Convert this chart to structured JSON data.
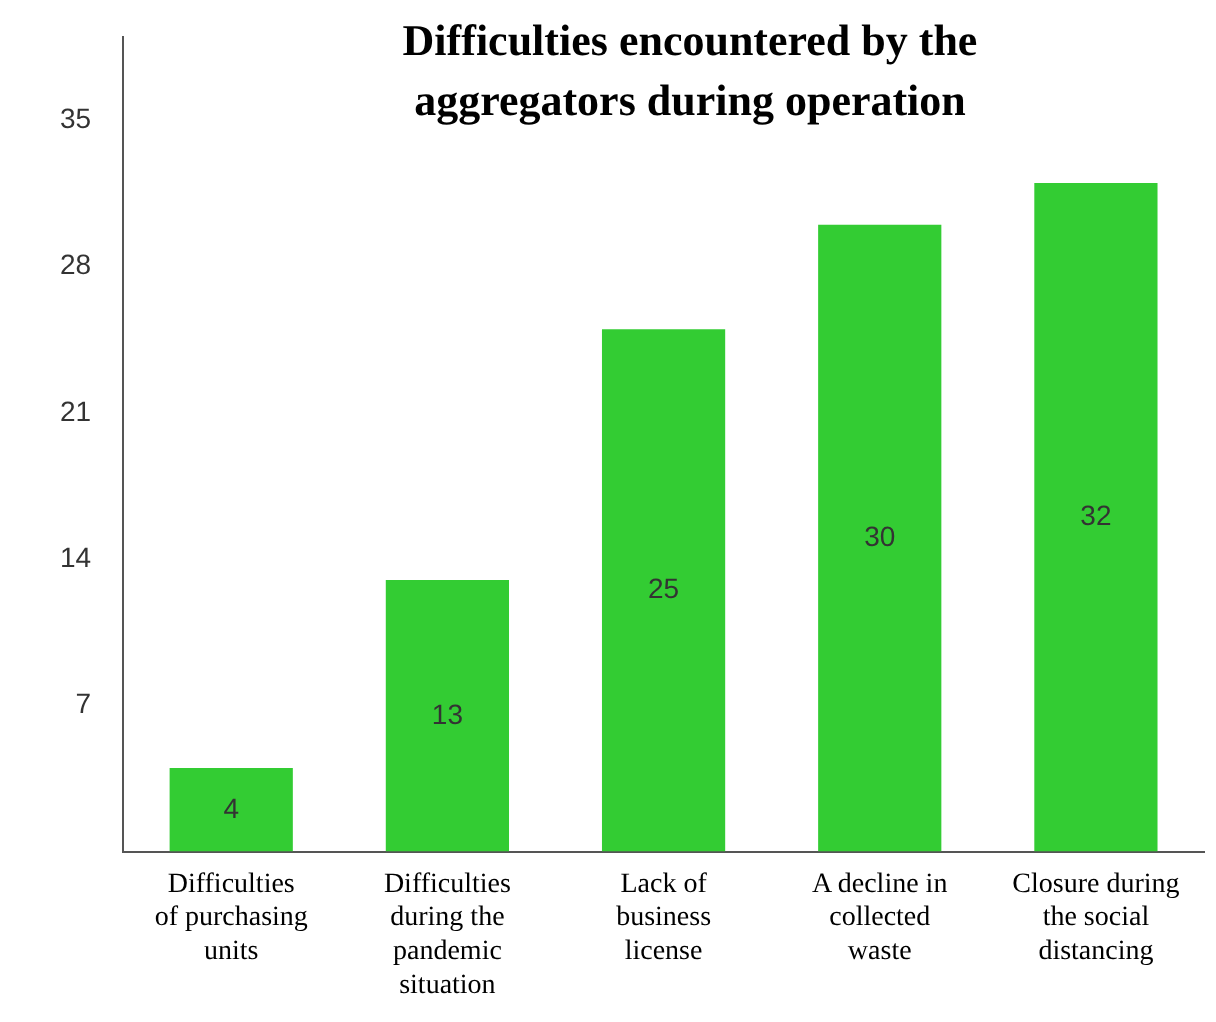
{
  "chart_data": {
    "type": "bar",
    "title": "Difficulties encountered by the aggregators during operation",
    "categories": [
      "Difficulties of purchasing units",
      "Difficulties during the pandemic situation",
      "Lack of business license",
      "A decline in collected waste",
      "Closure during the social distancing"
    ],
    "values": [
      4,
      13,
      25,
      30,
      32
    ],
    "color": "#33cc33",
    "ylim": [
      0,
      39
    ],
    "yticks": [
      7,
      14,
      21,
      28,
      35
    ],
    "grid": false,
    "data_labels": true
  }
}
